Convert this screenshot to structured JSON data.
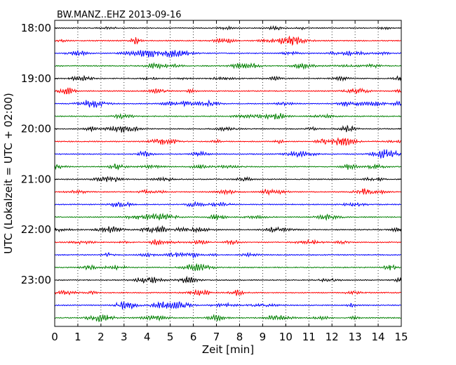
{
  "chart_data": {
    "type": "line",
    "title": "BW.MANZ..EHZ 2013-09-16",
    "xlabel": "Zeit  [min]",
    "ylabel": "UTC (Lokalzeit = UTC + 02:00)",
    "xlim": [
      0,
      15
    ],
    "x_ticks": [
      "0",
      "1",
      "2",
      "3",
      "4",
      "5",
      "6",
      "7",
      "8",
      "9",
      "10",
      "11",
      "12",
      "13",
      "14",
      "15"
    ],
    "y_ticks": [
      "18:00",
      "19:00",
      "20:00",
      "21:00",
      "22:00",
      "23:00"
    ],
    "grid": "vertical-dotted",
    "trace_interval_min": 15,
    "trace_colors": [
      "#000000",
      "#ff0000",
      "#0000ff",
      "#008000"
    ],
    "series": [
      {
        "start": "18:00"
      },
      {
        "start": "18:15"
      },
      {
        "start": "18:30"
      },
      {
        "start": "18:45"
      },
      {
        "start": "19:00"
      },
      {
        "start": "19:15"
      },
      {
        "start": "19:30"
      },
      {
        "start": "19:45"
      },
      {
        "start": "20:00"
      },
      {
        "start": "20:15"
      },
      {
        "start": "20:30"
      },
      {
        "start": "20:45"
      },
      {
        "start": "21:00"
      },
      {
        "start": "21:15"
      },
      {
        "start": "21:30"
      },
      {
        "start": "21:45"
      },
      {
        "start": "22:00"
      },
      {
        "start": "22:15"
      },
      {
        "start": "22:30"
      },
      {
        "start": "22:45"
      },
      {
        "start": "23:00"
      },
      {
        "start": "23:15"
      },
      {
        "start": "23:30"
      },
      {
        "start": "23:45"
      }
    ]
  }
}
